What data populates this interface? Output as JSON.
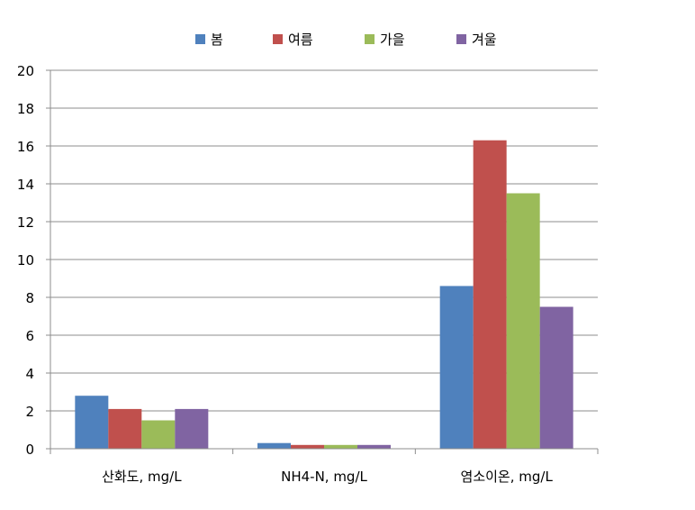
{
  "chart_data": {
    "type": "bar",
    "categories": [
      "산화도, mg/L",
      "NH4-N, mg/L",
      "염소이온, mg/L"
    ],
    "series": [
      {
        "name": "봄",
        "color": "#4f81bd",
        "values": [
          2.8,
          0.3,
          8.6
        ]
      },
      {
        "name": "여름",
        "color": "#c0504d",
        "values": [
          2.1,
          0.2,
          16.3
        ]
      },
      {
        "name": "가을",
        "color": "#9bbb59",
        "values": [
          1.5,
          0.2,
          13.5
        ]
      },
      {
        "name": "겨울",
        "color": "#8064a2",
        "values": [
          2.1,
          0.2,
          7.5
        ]
      }
    ],
    "ylim": [
      0,
      20
    ],
    "yticks": [
      0,
      2,
      4,
      6,
      8,
      10,
      12,
      14,
      16,
      18,
      20
    ],
    "grid": true,
    "legend_position": "top"
  }
}
